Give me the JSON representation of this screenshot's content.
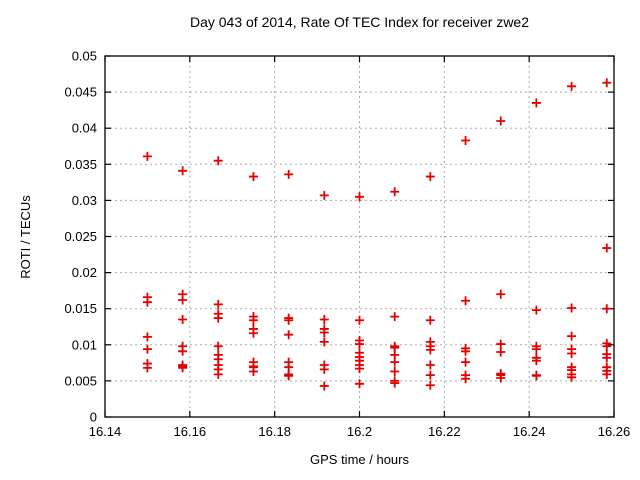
{
  "chart_data": {
    "type": "scatter",
    "title": "Day 043 of 2014, Rate Of TEC Index for receiver zwe2",
    "xlabel": "GPS time / hours",
    "ylabel": "ROTI / TECUs",
    "xlim": [
      16.14,
      16.26
    ],
    "ylim": [
      0,
      0.05
    ],
    "xticks": [
      16.14,
      16.16,
      16.18,
      16.2,
      16.22,
      16.24,
      16.26
    ],
    "xtick_labels": [
      "16.14",
      "16.16",
      "16.18",
      "16.2",
      "16.22",
      "16.24",
      "16.26"
    ],
    "yticks": [
      0,
      0.005,
      0.01,
      0.015,
      0.02,
      0.025,
      0.03,
      0.035,
      0.04,
      0.045,
      0.05
    ],
    "ytick_labels": [
      "0",
      "0.005",
      "0.01",
      "0.015",
      "0.02",
      "0.025",
      "0.03",
      "0.035",
      "0.04",
      "0.045",
      "0.05"
    ],
    "grid": true,
    "grid_style": "dashed",
    "legend": "none",
    "colors": {
      "marker": "#e60000",
      "grid": "#ababab",
      "border": "#000000",
      "text": "#000000",
      "background": "#ffffff"
    },
    "series": [
      {
        "name": "ROTI",
        "marker": "plus",
        "groups": [
          {
            "x": 16.15,
            "y": [
              0.0361,
              0.0166,
              0.0159,
              0.0111,
              0.0094,
              0.0074,
              0.0068
            ]
          },
          {
            "x": 16.1583,
            "y": [
              0.0341,
              0.017,
              0.0162,
              0.0135,
              0.0098,
              0.0091,
              0.0072,
              0.007,
              0.0068
            ]
          },
          {
            "x": 16.1667,
            "y": [
              0.0355,
              0.0156,
              0.0143,
              0.0137,
              0.0098,
              0.0086,
              0.008,
              0.0072,
              0.0066,
              0.0059
            ]
          },
          {
            "x": 16.175,
            "y": [
              0.0333,
              0.0139,
              0.0134,
              0.0122,
              0.0116,
              0.0076,
              0.007,
              0.0069,
              0.0063
            ]
          },
          {
            "x": 16.1833,
            "y": [
              0.0336,
              0.0137,
              0.0134,
              0.0114,
              0.0076,
              0.0069,
              0.0059,
              0.0057
            ]
          },
          {
            "x": 16.1917,
            "y": [
              0.0307,
              0.0135,
              0.0122,
              0.0117,
              0.0104,
              0.0072,
              0.0066,
              0.0043
            ]
          },
          {
            "x": 16.2,
            "y": [
              0.0305,
              0.0134,
              0.0106,
              0.0101,
              0.0089,
              0.0083,
              0.0078,
              0.0072,
              0.0067,
              0.0046
            ]
          },
          {
            "x": 16.2083,
            "y": [
              0.0312,
              0.0139,
              0.0098,
              0.0096,
              0.0086,
              0.0076,
              0.0063,
              0.005,
              0.0047
            ]
          },
          {
            "x": 16.2167,
            "y": [
              0.0333,
              0.0134,
              0.0104,
              0.0098,
              0.0093,
              0.0072,
              0.0058,
              0.0044
            ]
          },
          {
            "x": 16.225,
            "y": [
              0.0383,
              0.0161,
              0.0095,
              0.0091,
              0.0076,
              0.0058,
              0.0053
            ]
          },
          {
            "x": 16.2333,
            "y": [
              0.041,
              0.017,
              0.0101,
              0.009,
              0.006,
              0.0058,
              0.0054
            ]
          },
          {
            "x": 16.2417,
            "y": [
              0.0435,
              0.0148,
              0.0098,
              0.0094,
              0.0082,
              0.0078,
              0.0058,
              0.0057
            ]
          },
          {
            "x": 16.25,
            "y": [
              0.0458,
              0.0151,
              0.0112,
              0.0094,
              0.0088,
              0.0069,
              0.0065,
              0.0059,
              0.0055
            ]
          },
          {
            "x": 16.2583,
            "y": [
              0.0463,
              0.0234,
              0.015,
              0.0102,
              0.0098,
              0.0087,
              0.0082,
              0.0069,
              0.0064,
              0.0059
            ]
          }
        ]
      }
    ]
  }
}
